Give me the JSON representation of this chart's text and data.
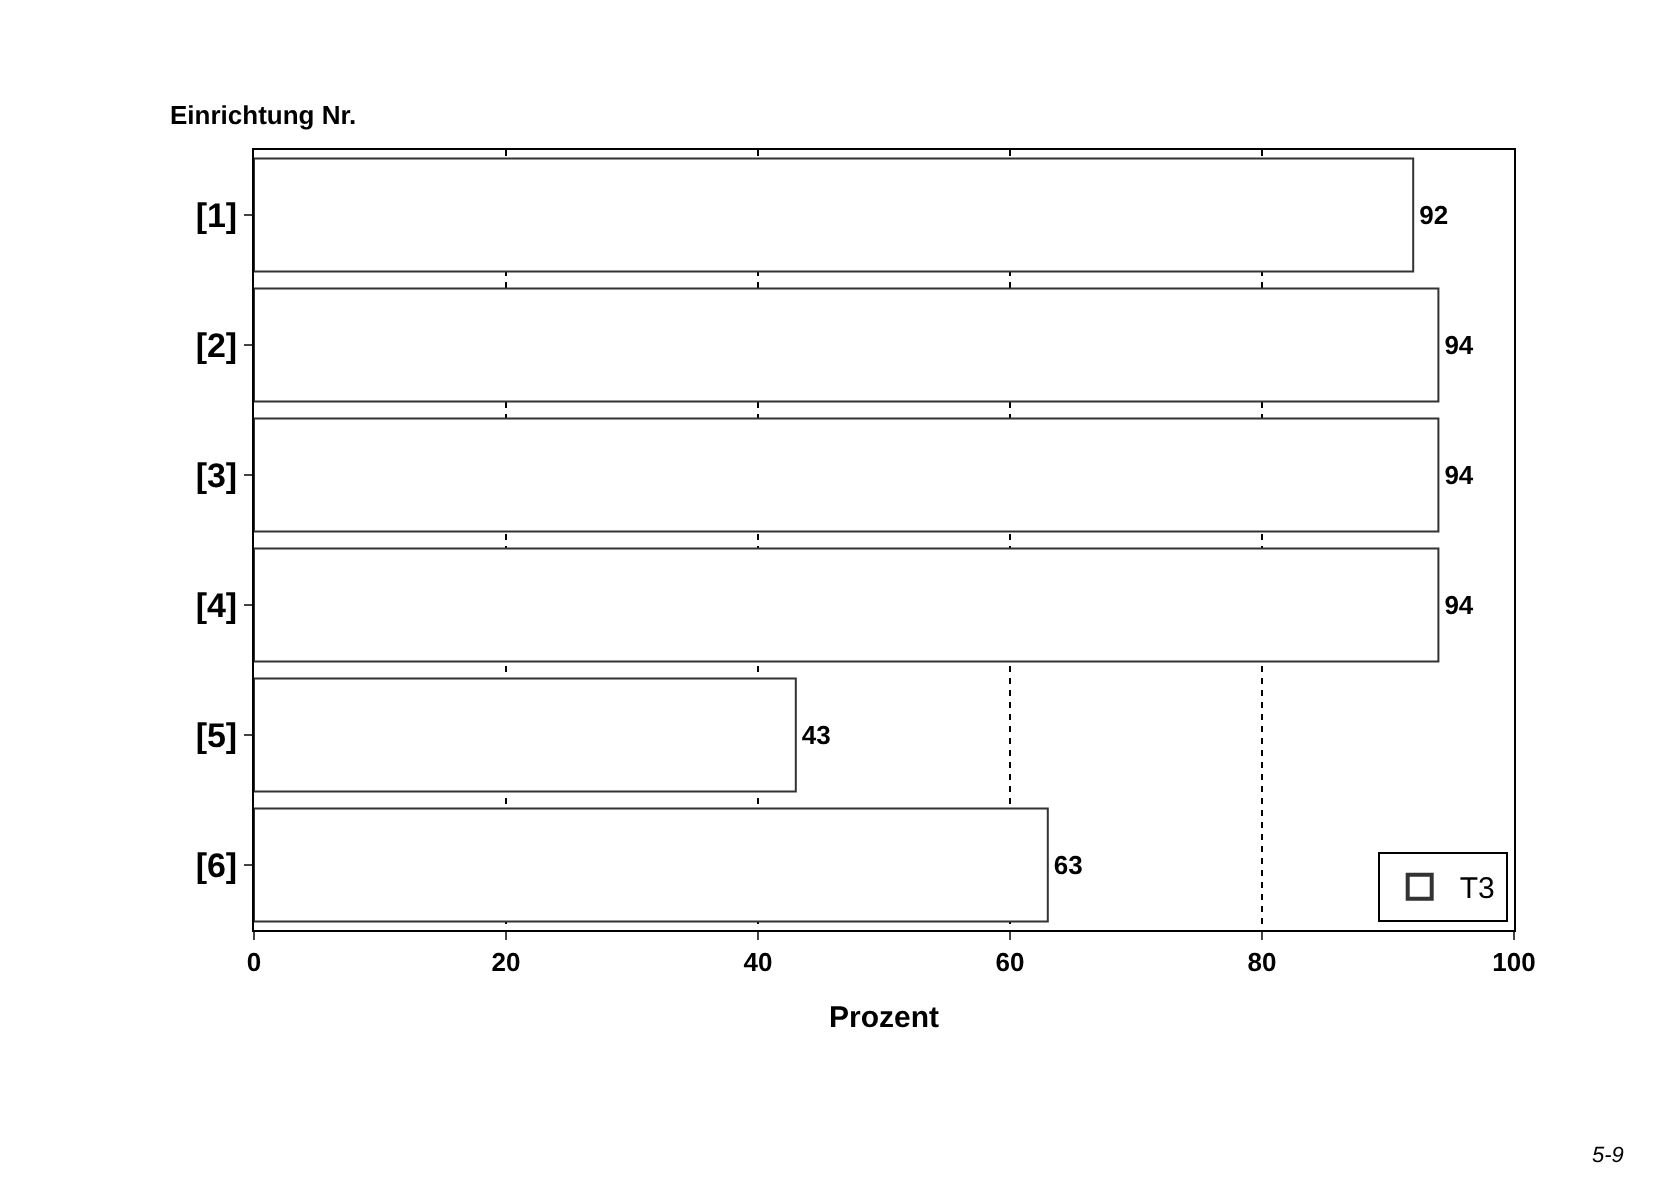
{
  "chart_data": {
    "type": "bar",
    "orientation": "horizontal",
    "ylabel": "Einrichtung Nr.",
    "xlabel": "Prozent",
    "categories": [
      "[1]",
      "[2]",
      "[3]",
      "[4]",
      "[5]",
      "[6]"
    ],
    "series": [
      {
        "name": "T3",
        "color": "#ffffff",
        "values": [
          92,
          94,
          94,
          94,
          43,
          63
        ]
      }
    ],
    "xlim": [
      0,
      100
    ],
    "xticks": [
      0,
      20,
      40,
      60,
      80,
      100
    ],
    "grid": "x",
    "legend": "bottom right",
    "data_labels": true,
    "annotations": [
      "5-9"
    ]
  }
}
